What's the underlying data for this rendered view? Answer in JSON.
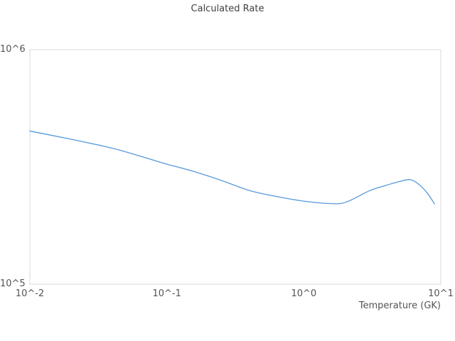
{
  "chart_data": {
    "type": "line",
    "title": "Calculated Rate",
    "xlabel": "Temperature (GK)",
    "ylabel": "",
    "x_scale": "log",
    "y_scale": "log",
    "xlim": [
      0.01,
      10
    ],
    "ylim": [
      100000,
      1000000
    ],
    "grid": false,
    "legend": false,
    "colors": {
      "line": "#5699da",
      "plot_border": "#d8d8d8",
      "tick_text": "#545454",
      "title_text": "#3f3f3f",
      "background": "#ffffff"
    },
    "xticks": [
      {
        "label": "10^-2",
        "value": 0.01
      },
      {
        "label": "10^-1",
        "value": 0.1
      },
      {
        "label": "10^0",
        "value": 1
      },
      {
        "label": "10^1",
        "value": 10
      }
    ],
    "yticks": [
      {
        "label": "10^5",
        "value": 100000
      },
      {
        "label": "10^6",
        "value": 1000000
      }
    ],
    "series": [
      {
        "name": "Calculated Rate",
        "x": [
          0.01,
          0.02,
          0.04,
          0.07,
          0.1,
          0.15,
          0.25,
          0.4,
          0.6,
          1.0,
          1.5,
          2.0,
          3.0,
          4.0,
          5.0,
          6.0,
          7.0,
          8.0,
          9.0
        ],
        "y": [
          450000,
          415000,
          380000,
          346000,
          325000,
          305000,
          277000,
          251000,
          238000,
          226000,
          221000,
          223000,
          250000,
          264000,
          274000,
          279000,
          265000,
          244000,
          220000
        ]
      }
    ]
  }
}
